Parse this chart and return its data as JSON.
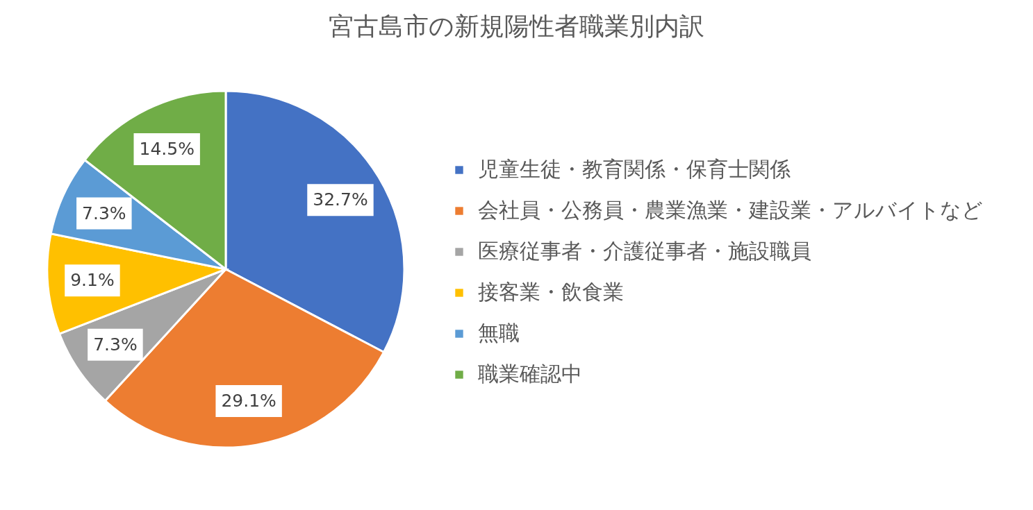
{
  "chart_data": {
    "type": "pie",
    "title": "宮古島市の新規陽性者職業別内訳",
    "categories": [
      "児童生徒・教育関係・保育士関係",
      "会社員・公務員・農業漁業・建設業・アルバイトなど",
      "医療従事者・介護従事者・施設職員",
      "接客業・飲食業",
      "無職",
      "職業確認中"
    ],
    "values": [
      32.7,
      29.1,
      7.3,
      9.1,
      7.3,
      14.5
    ],
    "colors": [
      "#4472c4",
      "#ed7d31",
      "#a5a5a5",
      "#ffc000",
      "#5b9bd5",
      "#70ad47"
    ],
    "value_labels": [
      "32.7%",
      "29.1%",
      "7.3%",
      "9.1%",
      "7.3%",
      "14.5%"
    ],
    "legend": "right"
  }
}
